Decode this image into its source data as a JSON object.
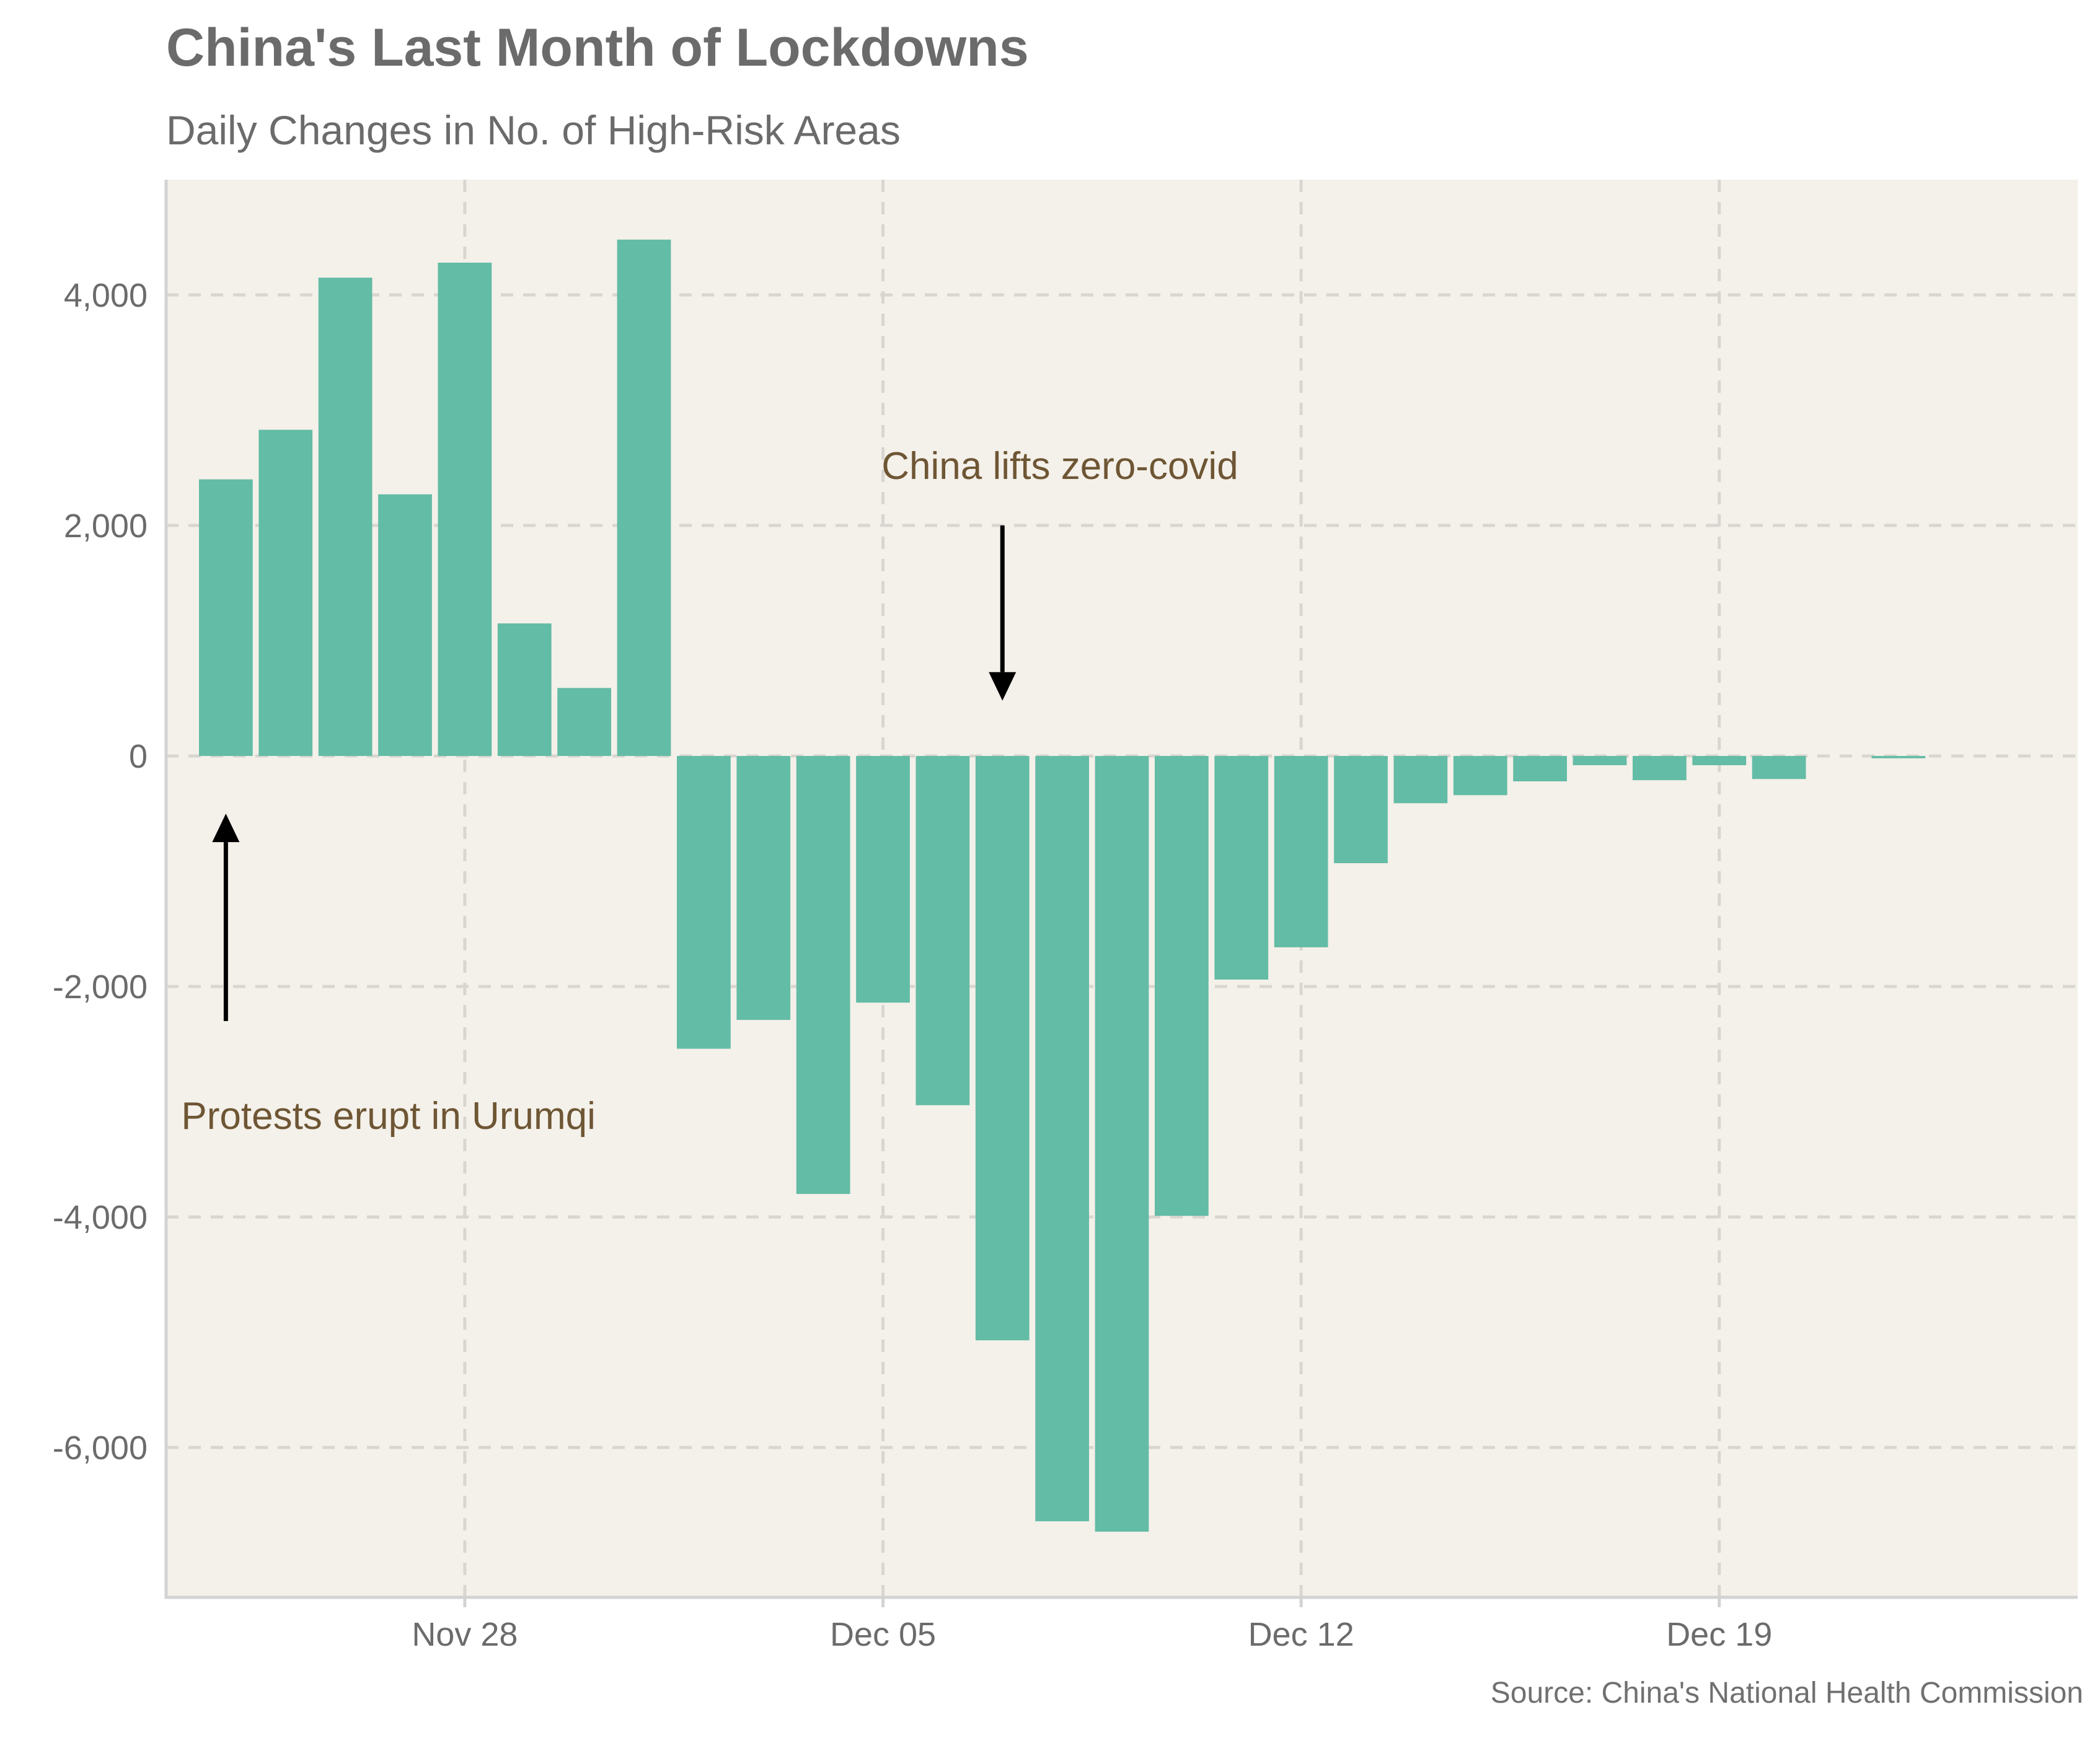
{
  "colors": {
    "bar": "#63bca5",
    "panel": "#f4f0ea",
    "grid": "#d9d6d1",
    "axis": "#d3d3d3",
    "tick_text": "#6b6b6b",
    "annotation_text": "#6e5634",
    "arrow": "#000000"
  },
  "chart_data": {
    "type": "bar",
    "title": "China's Last Month of Lockdowns",
    "subtitle": "Daily Changes in No. of High-Risk Areas",
    "caption": "Source: China's National Health Commission",
    "xlabel": "",
    "ylabel": "",
    "x_range": [
      "2022-11-23",
      "2022-12-25"
    ],
    "ylim": [
      -7300,
      5000
    ],
    "y_ticks": [
      {
        "value": -6000,
        "label": "-6,000"
      },
      {
        "value": -4000,
        "label": "-4,000"
      },
      {
        "value": -2000,
        "label": "-2,000"
      },
      {
        "value": 0,
        "label": "0"
      },
      {
        "value": 2000,
        "label": "2,000"
      },
      {
        "value": 4000,
        "label": "4,000"
      }
    ],
    "x_ticks": [
      {
        "date": "2022-11-28",
        "label": "Nov 28"
      },
      {
        "date": "2022-12-05",
        "label": "Dec 05"
      },
      {
        "date": "2022-12-12",
        "label": "Dec 12"
      },
      {
        "date": "2022-12-19",
        "label": "Dec 19"
      }
    ],
    "grid": true,
    "legend": "none",
    "bars": [
      {
        "date": "2022-11-24",
        "value": 2400
      },
      {
        "date": "2022-11-25",
        "value": 2830
      },
      {
        "date": "2022-11-26",
        "value": 4150
      },
      {
        "date": "2022-11-27",
        "value": 2270
      },
      {
        "date": "2022-11-28",
        "value": 4280
      },
      {
        "date": "2022-11-29",
        "value": 1150
      },
      {
        "date": "2022-11-30",
        "value": 590
      },
      {
        "date": "2022-12-01",
        "value": 4480
      },
      {
        "date": "2022-12-02",
        "value": -2540
      },
      {
        "date": "2022-12-03",
        "value": -2290
      },
      {
        "date": "2022-12-04",
        "value": -3800
      },
      {
        "date": "2022-12-05",
        "value": -2140
      },
      {
        "date": "2022-12-06",
        "value": -3030
      },
      {
        "date": "2022-12-07",
        "value": -5070
      },
      {
        "date": "2022-12-08",
        "value": -6640
      },
      {
        "date": "2022-12-09",
        "value": -6730
      },
      {
        "date": "2022-12-10",
        "value": -3990
      },
      {
        "date": "2022-12-11",
        "value": -1940
      },
      {
        "date": "2022-12-12",
        "value": -1660
      },
      {
        "date": "2022-12-13",
        "value": -930
      },
      {
        "date": "2022-12-14",
        "value": -410
      },
      {
        "date": "2022-12-15",
        "value": -340
      },
      {
        "date": "2022-12-16",
        "value": -220
      },
      {
        "date": "2022-12-17",
        "value": -80
      },
      {
        "date": "2022-12-18",
        "value": -210
      },
      {
        "date": "2022-12-19",
        "value": -80
      },
      {
        "date": "2022-12-20",
        "value": -200
      },
      {
        "date": "2022-12-22",
        "value": -20
      }
    ],
    "annotations": [
      {
        "text": "China lifts zero-covid",
        "arrow_from": {
          "date": "2022-12-07",
          "value": 2000
        },
        "arrow_to": {
          "date": "2022-12-07",
          "value": 480
        }
      },
      {
        "text": "Protests erupt in Urumqi",
        "arrow_from": {
          "date": "2022-11-24",
          "value": -2300
        },
        "arrow_to": {
          "date": "2022-11-24",
          "value": -500
        }
      }
    ]
  }
}
